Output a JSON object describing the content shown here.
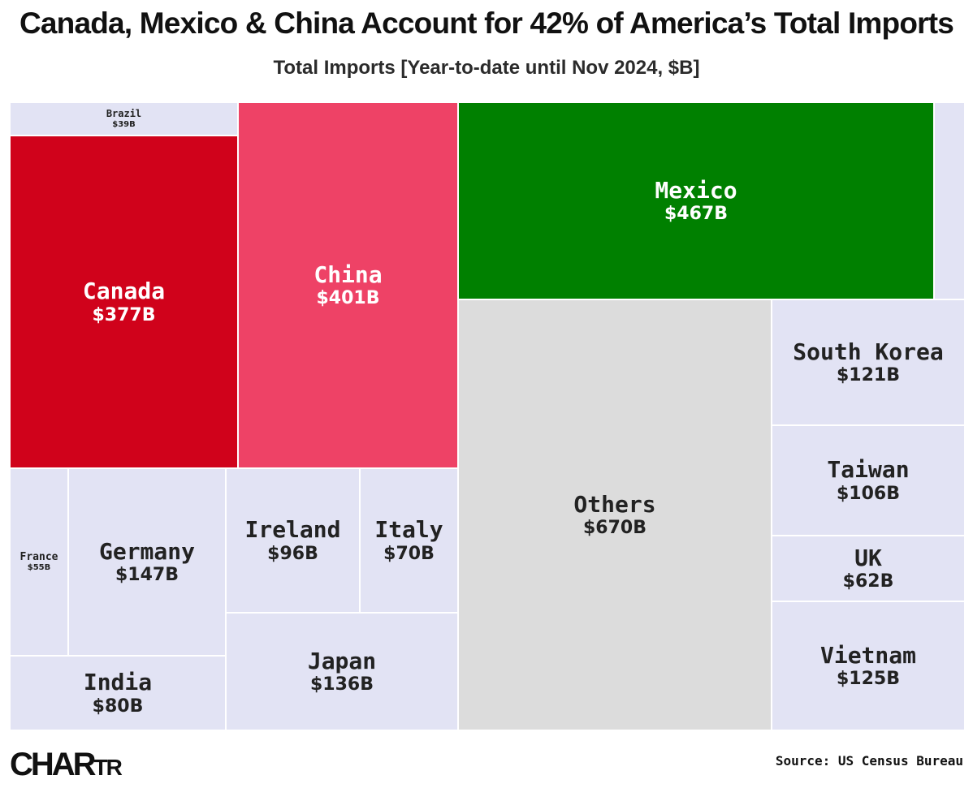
{
  "header": {
    "title": "Canada, Mexico & China Account for 42% of America’s Total Imports",
    "subtitle": "Total Imports [Year-to-date until Nov 2024, $B]"
  },
  "chart_data": {
    "type": "treemap",
    "title": "Canada, Mexico & China Account for 42% of America’s Total Imports",
    "subtitle": "Total Imports [Year-to-date until Nov 2024, $B]",
    "unit": "$B",
    "items": [
      {
        "name": "Brazil",
        "label": "$39B",
        "value": 39,
        "color": "#e2e3f4",
        "text_color": "#222222"
      },
      {
        "name": "Canada",
        "label": "$377B",
        "value": 377,
        "color": "#d0021b",
        "text_color": "#ffffff"
      },
      {
        "name": "China",
        "label": "$401B",
        "value": 401,
        "color": "#ee4266",
        "text_color": "#ffffff"
      },
      {
        "name": "Mexico",
        "label": "$467B",
        "value": 467,
        "color": "#008000",
        "text_color": "#ffffff"
      },
      {
        "name": "Others",
        "label": "$670B",
        "value": 670,
        "color": "#dcdcdc",
        "text_color": "#222222"
      },
      {
        "name": "South Korea",
        "label": "$121B",
        "value": 121,
        "color": "#e2e3f4",
        "text_color": "#222222"
      },
      {
        "name": "Taiwan",
        "label": "$106B",
        "value": 106,
        "color": "#e2e3f4",
        "text_color": "#222222"
      },
      {
        "name": "UK",
        "label": "$62B",
        "value": 62,
        "color": "#e2e3f4",
        "text_color": "#222222"
      },
      {
        "name": "Vietnam",
        "label": "$125B",
        "value": 125,
        "color": "#e2e3f4",
        "text_color": "#222222"
      },
      {
        "name": "France",
        "label": "$55B",
        "value": 55,
        "color": "#e2e3f4",
        "text_color": "#222222"
      },
      {
        "name": "Germany",
        "label": "$147B",
        "value": 147,
        "color": "#e2e3f4",
        "text_color": "#222222"
      },
      {
        "name": "India",
        "label": "$80B",
        "value": 80,
        "color": "#e2e3f4",
        "text_color": "#222222"
      },
      {
        "name": "Ireland",
        "label": "$96B",
        "value": 96,
        "color": "#e2e3f4",
        "text_color": "#222222"
      },
      {
        "name": "Italy",
        "label": "$70B",
        "value": 70,
        "color": "#e2e3f4",
        "text_color": "#222222"
      },
      {
        "name": "Japan",
        "label": "$136B",
        "value": 136,
        "color": "#e2e3f4",
        "text_color": "#222222"
      }
    ]
  },
  "footer": {
    "logo": "CHARTR",
    "logo_main": "CHAR",
    "logo_small": "TR",
    "source": "Source: US Census Bureau"
  }
}
